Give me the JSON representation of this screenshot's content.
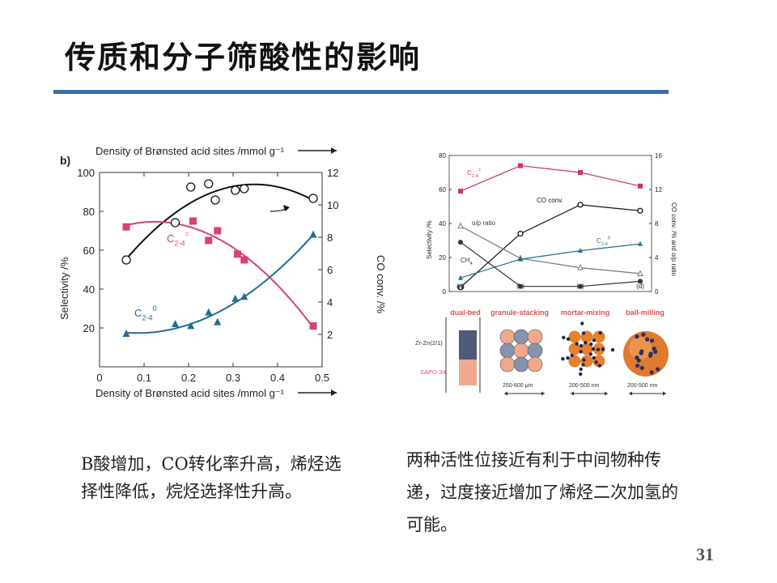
{
  "slide": {
    "title": "传质和分子筛酸性的影响",
    "left_caption": "B酸增加，CO转化率升高，烯烃选择性降低，烷烃选择性升高。",
    "right_caption": "两种活性位接近有利于中间物种传递，过度接近增加了烯烃二次加氢的可能。",
    "page_number": "31"
  },
  "chart_data": [
    {
      "type": "scatter",
      "panel_label": "b)",
      "top_xlabel": "Density of Brønsted acid sites /mmol g⁻¹",
      "xlabel": "Density of Brønsted acid sites /mmol g⁻¹",
      "ylabel": "Selectivity /%",
      "y2label": "CO conv. /%",
      "xlim": [
        0,
        0.5
      ],
      "ylim": [
        0,
        100
      ],
      "y2lim": [
        0,
        12
      ],
      "xticks": [
        0,
        0.1,
        0.2,
        0.3,
        0.4,
        0.5
      ],
      "yticks": [
        20,
        40,
        60,
        80,
        100
      ],
      "y2ticks": [
        2,
        4,
        6,
        8,
        10,
        12
      ],
      "colors": {
        "co": "#111111",
        "olefin": "#d8407a",
        "paraffin": "#1f6d94"
      },
      "series": [
        {
          "name": "CO conv.",
          "axis": "right",
          "marker": "open-circle",
          "x": [
            0.06,
            0.17,
            0.205,
            0.245,
            0.26,
            0.305,
            0.325,
            0.48
          ],
          "y": [
            6.6,
            8.9,
            11.1,
            11.3,
            10.3,
            10.9,
            11.0,
            10.4
          ]
        },
        {
          "name": "C2-4=",
          "label": "C",
          "sub": "2-4",
          "sup": "=",
          "axis": "left",
          "marker": "square",
          "x": [
            0.06,
            0.21,
            0.245,
            0.265,
            0.31,
            0.325,
            0.48
          ],
          "y": [
            72,
            75,
            65,
            70,
            58,
            55,
            21
          ]
        },
        {
          "name": "C2-40",
          "label": "C",
          "sub": "2-4",
          "sup": "0",
          "axis": "left",
          "marker": "triangle",
          "x": [
            0.06,
            0.17,
            0.205,
            0.245,
            0.265,
            0.305,
            0.325,
            0.48
          ],
          "y": [
            17,
            22,
            21,
            28,
            23,
            35,
            36,
            68
          ]
        }
      ]
    },
    {
      "type": "line",
      "categories": [
        "(a)",
        "(b)",
        "(c)",
        "(d)"
      ],
      "category_names": [
        "dual-bed",
        "granule-stacking",
        "mortar-mixing",
        "ball-milling"
      ],
      "ylabel": "Selectivity /%",
      "y2label": "CO conv. /% and o/p ratio",
      "ylim": [
        0,
        80
      ],
      "y2lim": [
        0,
        16
      ],
      "yticks": [
        0,
        20,
        40,
        60,
        80
      ],
      "y2ticks": [
        0,
        4,
        8,
        12,
        16
      ],
      "colors": {
        "olefin": "#cc3366",
        "co": "#111111",
        "op": "#777777",
        "paraffin": "#1f6d94",
        "ch4": "#333333"
      },
      "series": [
        {
          "name": "C2-4=",
          "label": "C",
          "sub": "2-4",
          "sup": "=",
          "axis": "left",
          "marker": "square",
          "values": [
            59,
            74,
            70,
            62
          ]
        },
        {
          "name": "CO conv.",
          "axis": "right",
          "marker": "open-circle",
          "values": [
            0.5,
            6.8,
            10.2,
            9.5
          ]
        },
        {
          "name": "o/p ratio",
          "axis": "right",
          "marker": "open-triangle",
          "values": [
            7.7,
            3.9,
            2.8,
            2.1
          ]
        },
        {
          "name": "C2-40",
          "label": "C",
          "sub": "2-4",
          "sup": "0",
          "axis": "left",
          "marker": "triangle",
          "values": [
            8,
            19,
            24,
            28
          ]
        },
        {
          "name": "CH4",
          "label": "CH",
          "sub": "4",
          "axis": "left",
          "marker": "circle",
          "values": [
            29,
            3,
            3,
            6
          ]
        }
      ],
      "schematic": {
        "layer_labels": [
          "Zr-Zn(2/1)",
          "SAPO-34"
        ],
        "size_labels": [
          "250-600 μm",
          "200-500 nm",
          "200-500 nm"
        ]
      }
    }
  ]
}
